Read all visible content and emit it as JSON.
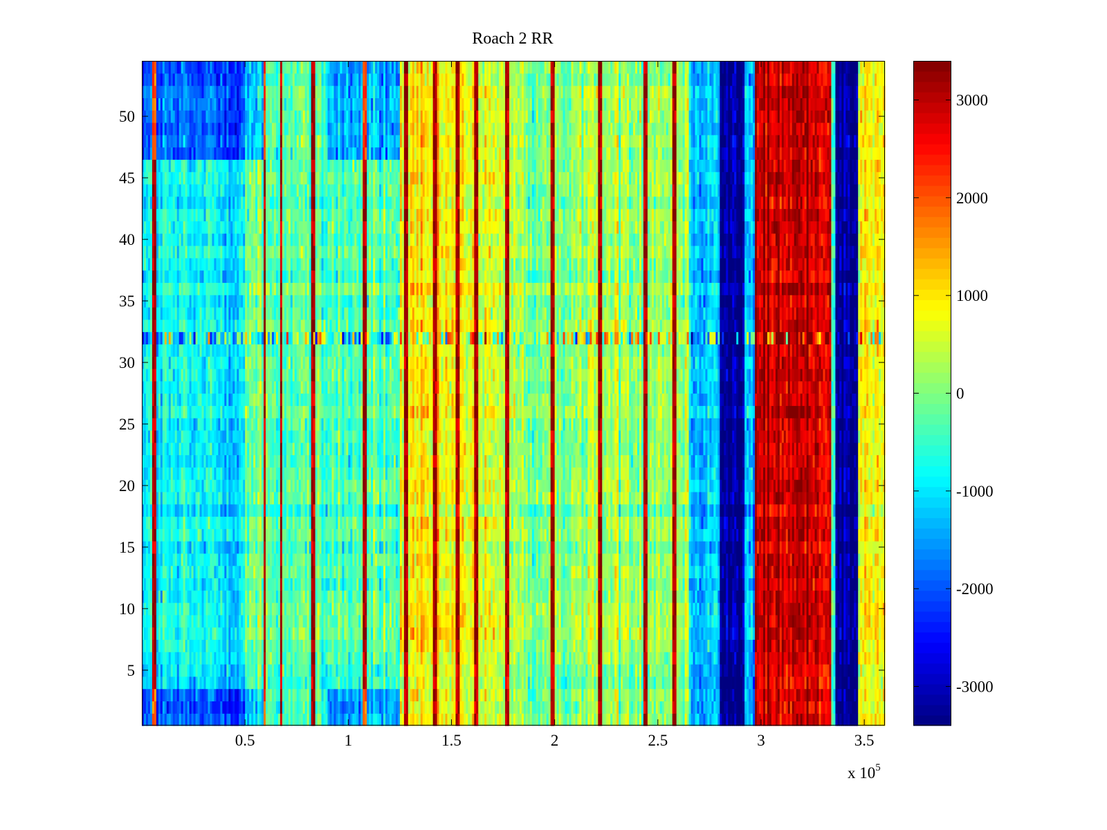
{
  "chart_data": {
    "type": "heatmap",
    "title": "Roach 2 RR",
    "xlabel": "",
    "ylabel": "",
    "x_range": [
      0,
      360000
    ],
    "y_range": [
      0.5,
      54.5
    ],
    "x_ticks": [
      50000,
      100000,
      150000,
      200000,
      250000,
      300000,
      350000
    ],
    "x_tick_labels": [
      "0.5",
      "1",
      "1.5",
      "2",
      "2.5",
      "3",
      "3.5"
    ],
    "x_multiplier_base": "x 10",
    "x_multiplier_exp": "5",
    "y_ticks": [
      5,
      10,
      15,
      20,
      25,
      30,
      35,
      40,
      45,
      50
    ],
    "y_tick_labels": [
      "5",
      "10",
      "15",
      "20",
      "25",
      "30",
      "35",
      "40",
      "45",
      "50"
    ],
    "rows": 54,
    "colormap": "jet",
    "color_range": [
      -3400,
      3400
    ],
    "colorbar_ticks": [
      3000,
      2000,
      1000,
      0,
      -1000,
      -2000,
      -3000
    ],
    "colorbar_tick_labels": [
      "3000",
      "2000",
      "1000",
      "0",
      "-1000",
      "-2000",
      "-3000"
    ],
    "column_bands": [
      {
        "x_start": 0,
        "x_end": 50000,
        "value": -900
      },
      {
        "x_start": 50000,
        "x_end": 80000,
        "value": -200
      },
      {
        "x_start": 80000,
        "x_end": 125000,
        "value": -350
      },
      {
        "x_start": 125000,
        "x_end": 165000,
        "value": 750
      },
      {
        "x_start": 165000,
        "x_end": 185000,
        "value": 450
      },
      {
        "x_start": 185000,
        "x_end": 205000,
        "value": -150
      },
      {
        "x_start": 205000,
        "x_end": 265000,
        "value": 250
      },
      {
        "x_start": 265000,
        "x_end": 280000,
        "value": -1100
      },
      {
        "x_start": 280000,
        "x_end": 292000,
        "value": -3300
      },
      {
        "x_start": 292000,
        "x_end": 297000,
        "value": -1400
      },
      {
        "x_start": 297000,
        "x_end": 334000,
        "value": 2900
      },
      {
        "x_start": 334000,
        "x_end": 336000,
        "value": -200
      },
      {
        "x_start": 336000,
        "x_end": 347000,
        "value": -3300
      },
      {
        "x_start": 347000,
        "x_end": 360000,
        "value": 800
      }
    ],
    "bright_streaks_x": [
      6000,
      59500,
      67500,
      83000,
      108000,
      128000,
      142000,
      153000,
      162000,
      177000,
      199000,
      222000,
      244000,
      258000
    ],
    "anomaly_row": 32
  }
}
